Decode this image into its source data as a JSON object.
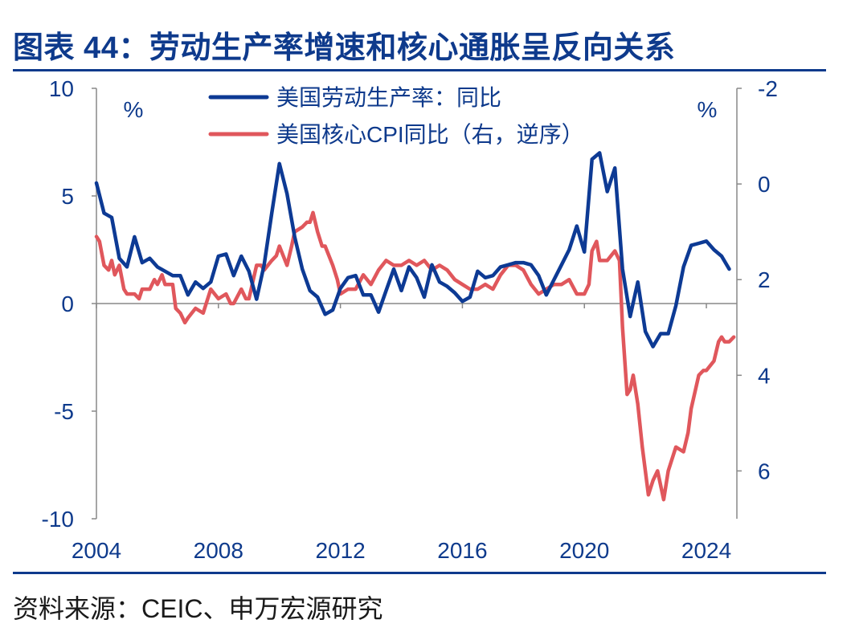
{
  "header": {
    "title": "图表 44：劳动生产率增速和核心通胀呈反向关系"
  },
  "footer": {
    "source": "资料来源：CEIC、申万宏源研究"
  },
  "colors": {
    "primary": "#0e3a8c",
    "productivity": "#0d3a94",
    "core_cpi": "#e0575c",
    "axis": "#888888"
  },
  "chart_data": {
    "type": "line",
    "left_axis": {
      "range": [
        -10,
        10
      ],
      "ticks": [
        10,
        5,
        0,
        -5,
        -10
      ],
      "tick_labels": [
        "10",
        "5",
        "0",
        "-5",
        "-10"
      ],
      "unit": "%"
    },
    "right_axis": {
      "range": [
        -2,
        7
      ],
      "inverted": true,
      "ticks": [
        -2,
        0,
        2,
        4,
        6
      ],
      "tick_labels": [
        "-2",
        "0",
        "2",
        "4",
        "6"
      ],
      "unit": "%"
    },
    "x_axis": {
      "range": [
        2004.0,
        2025.0
      ],
      "ticks": [
        2004,
        2008,
        2012,
        2016,
        2020,
        2024
      ],
      "tick_labels": [
        "2004",
        "2008",
        "2012",
        "2016",
        "2020",
        "2024"
      ]
    },
    "legend_position": "top-center",
    "series": [
      {
        "name": "美国劳动生产率：同比",
        "axis": "left",
        "points": [
          [
            2004.0,
            5.6
          ],
          [
            2004.25,
            4.2
          ],
          [
            2004.5,
            4.0
          ],
          [
            2004.75,
            2.1
          ],
          [
            2005.0,
            1.7
          ],
          [
            2005.25,
            3.1
          ],
          [
            2005.5,
            1.9
          ],
          [
            2005.75,
            2.1
          ],
          [
            2006.0,
            1.7
          ],
          [
            2006.25,
            1.5
          ],
          [
            2006.5,
            1.3
          ],
          [
            2006.75,
            1.3
          ],
          [
            2007.0,
            0.4
          ],
          [
            2007.25,
            1.0
          ],
          [
            2007.5,
            0.7
          ],
          [
            2007.75,
            1.0
          ],
          [
            2008.0,
            2.2
          ],
          [
            2008.25,
            2.3
          ],
          [
            2008.5,
            1.3
          ],
          [
            2008.75,
            2.2
          ],
          [
            2009.0,
            1.5
          ],
          [
            2009.25,
            0.2
          ],
          [
            2009.5,
            1.8
          ],
          [
            2009.75,
            4.2
          ],
          [
            2010.0,
            6.5
          ],
          [
            2010.25,
            5.1
          ],
          [
            2010.5,
            3.1
          ],
          [
            2010.75,
            1.6
          ],
          [
            2011.0,
            0.6
          ],
          [
            2011.25,
            0.3
          ],
          [
            2011.5,
            -0.5
          ],
          [
            2011.75,
            -0.3
          ],
          [
            2012.0,
            0.7
          ],
          [
            2012.25,
            1.2
          ],
          [
            2012.5,
            1.3
          ],
          [
            2012.75,
            0.4
          ],
          [
            2013.0,
            0.4
          ],
          [
            2013.25,
            -0.4
          ],
          [
            2013.5,
            0.6
          ],
          [
            2013.75,
            1.6
          ],
          [
            2014.0,
            0.6
          ],
          [
            2014.25,
            1.7
          ],
          [
            2014.5,
            1.2
          ],
          [
            2014.75,
            0.3
          ],
          [
            2015.0,
            1.8
          ],
          [
            2015.25,
            1.0
          ],
          [
            2015.5,
            0.8
          ],
          [
            2015.75,
            0.5
          ],
          [
            2016.0,
            0.1
          ],
          [
            2016.25,
            0.3
          ],
          [
            2016.5,
            1.5
          ],
          [
            2016.75,
            1.2
          ],
          [
            2017.0,
            1.3
          ],
          [
            2017.25,
            1.7
          ],
          [
            2017.5,
            1.8
          ],
          [
            2017.75,
            1.9
          ],
          [
            2018.0,
            1.9
          ],
          [
            2018.25,
            1.8
          ],
          [
            2018.5,
            1.3
          ],
          [
            2018.75,
            0.4
          ],
          [
            2019.0,
            1.1
          ],
          [
            2019.25,
            1.8
          ],
          [
            2019.5,
            2.5
          ],
          [
            2019.75,
            3.6
          ],
          [
            2020.0,
            2.4
          ],
          [
            2020.25,
            6.7
          ],
          [
            2020.5,
            7.0
          ],
          [
            2020.75,
            5.2
          ],
          [
            2021.0,
            6.3
          ],
          [
            2021.25,
            1.6
          ],
          [
            2021.5,
            -0.6
          ],
          [
            2021.75,
            1.0
          ],
          [
            2022.0,
            -1.3
          ],
          [
            2022.25,
            -2.0
          ],
          [
            2022.5,
            -1.4
          ],
          [
            2022.75,
            -1.4
          ],
          [
            2023.0,
            -0.1
          ],
          [
            2023.25,
            1.7
          ],
          [
            2023.5,
            2.7
          ],
          [
            2023.75,
            2.8
          ],
          [
            2024.0,
            2.9
          ],
          [
            2024.25,
            2.5
          ],
          [
            2024.5,
            2.2
          ],
          [
            2024.75,
            1.6
          ]
        ]
      },
      {
        "name": "美国核心CPI同比（右，逆序）",
        "axis": "right",
        "points": [
          [
            2004.0,
            1.1
          ],
          [
            2004.1,
            1.2
          ],
          [
            2004.25,
            1.7
          ],
          [
            2004.4,
            1.8
          ],
          [
            2004.5,
            1.6
          ],
          [
            2004.6,
            1.9
          ],
          [
            2004.75,
            1.7
          ],
          [
            2004.9,
            2.2
          ],
          [
            2005.0,
            2.3
          ],
          [
            2005.25,
            2.3
          ],
          [
            2005.4,
            2.4
          ],
          [
            2005.5,
            2.2
          ],
          [
            2005.75,
            2.2
          ],
          [
            2005.9,
            2.0
          ],
          [
            2006.0,
            2.1
          ],
          [
            2006.15,
            1.9
          ],
          [
            2006.25,
            2.1
          ],
          [
            2006.5,
            2.1
          ],
          [
            2006.6,
            2.6
          ],
          [
            2006.75,
            2.7
          ],
          [
            2006.9,
            2.9
          ],
          [
            2007.0,
            2.8
          ],
          [
            2007.25,
            2.6
          ],
          [
            2007.5,
            2.7
          ],
          [
            2007.75,
            2.2
          ],
          [
            2008.0,
            2.4
          ],
          [
            2008.25,
            2.3
          ],
          [
            2008.4,
            2.5
          ],
          [
            2008.5,
            2.5
          ],
          [
            2008.75,
            2.2
          ],
          [
            2008.9,
            2.4
          ],
          [
            2009.0,
            2.4
          ],
          [
            2009.25,
            1.7
          ],
          [
            2009.4,
            1.7
          ],
          [
            2009.5,
            1.8
          ],
          [
            2009.75,
            1.6
          ],
          [
            2009.9,
            1.5
          ],
          [
            2010.0,
            1.3
          ],
          [
            2010.25,
            1.7
          ],
          [
            2010.4,
            1.3
          ],
          [
            2010.5,
            1.0
          ],
          [
            2010.75,
            0.9
          ],
          [
            2010.9,
            0.8
          ],
          [
            2011.0,
            0.8
          ],
          [
            2011.1,
            0.6
          ],
          [
            2011.25,
            1.0
          ],
          [
            2011.4,
            1.3
          ],
          [
            2011.5,
            1.3
          ],
          [
            2011.75,
            1.7
          ],
          [
            2011.9,
            2.0
          ],
          [
            2012.0,
            2.3
          ],
          [
            2012.25,
            2.2
          ],
          [
            2012.5,
            2.2
          ],
          [
            2012.75,
            1.9
          ],
          [
            2013.0,
            2.1
          ],
          [
            2013.25,
            1.8
          ],
          [
            2013.5,
            1.6
          ],
          [
            2013.75,
            1.7
          ],
          [
            2014.0,
            1.7
          ],
          [
            2014.25,
            1.6
          ],
          [
            2014.5,
            1.7
          ],
          [
            2014.75,
            1.6
          ],
          [
            2015.0,
            1.8
          ],
          [
            2015.25,
            1.7
          ],
          [
            2015.5,
            1.8
          ],
          [
            2015.75,
            2.0
          ],
          [
            2016.0,
            2.1
          ],
          [
            2016.25,
            2.2
          ],
          [
            2016.5,
            2.2
          ],
          [
            2016.75,
            2.1
          ],
          [
            2017.0,
            2.2
          ],
          [
            2017.25,
            1.9
          ],
          [
            2017.5,
            1.7
          ],
          [
            2017.75,
            1.7
          ],
          [
            2018.0,
            1.8
          ],
          [
            2018.25,
            2.1
          ],
          [
            2018.5,
            2.3
          ],
          [
            2018.75,
            2.2
          ],
          [
            2019.0,
            2.1
          ],
          [
            2019.25,
            2.1
          ],
          [
            2019.5,
            2.0
          ],
          [
            2019.75,
            2.3
          ],
          [
            2020.0,
            2.3
          ],
          [
            2020.15,
            2.1
          ],
          [
            2020.25,
            1.4
          ],
          [
            2020.4,
            1.2
          ],
          [
            2020.5,
            1.6
          ],
          [
            2020.75,
            1.6
          ],
          [
            2021.0,
            1.4
          ],
          [
            2021.15,
            1.6
          ],
          [
            2021.25,
            3.0
          ],
          [
            2021.4,
            4.4
          ],
          [
            2021.5,
            4.3
          ],
          [
            2021.6,
            4.0
          ],
          [
            2021.75,
            4.6
          ],
          [
            2021.9,
            5.5
          ],
          [
            2022.0,
            6.0
          ],
          [
            2022.1,
            6.5
          ],
          [
            2022.25,
            6.2
          ],
          [
            2022.4,
            6.0
          ],
          [
            2022.5,
            6.3
          ],
          [
            2022.6,
            6.6
          ],
          [
            2022.75,
            6.0
          ],
          [
            2022.9,
            5.7
          ],
          [
            2023.0,
            5.5
          ],
          [
            2023.25,
            5.6
          ],
          [
            2023.4,
            5.2
          ],
          [
            2023.5,
            4.7
          ],
          [
            2023.75,
            4.0
          ],
          [
            2023.9,
            3.9
          ],
          [
            2024.0,
            3.9
          ],
          [
            2024.25,
            3.7
          ],
          [
            2024.4,
            3.3
          ],
          [
            2024.5,
            3.2
          ],
          [
            2024.6,
            3.3
          ],
          [
            2024.75,
            3.3
          ],
          [
            2024.9,
            3.2
          ]
        ]
      }
    ]
  }
}
